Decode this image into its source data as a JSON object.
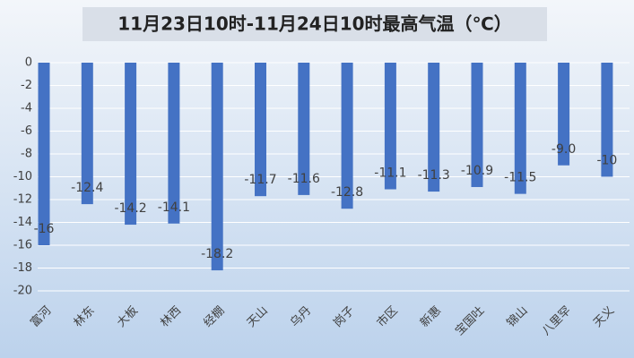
{
  "chart_data": {
    "type": "bar",
    "title": "11月23日10时-11月24日10时最高气温（℃）",
    "categories": [
      "富河",
      "林东",
      "大板",
      "林西",
      "经棚",
      "天山",
      "乌丹",
      "岗子",
      "市区",
      "新惠",
      "宝国吐",
      "锦山",
      "八里罕",
      "天义"
    ],
    "values": [
      -16,
      -12.4,
      -14.2,
      -14.1,
      -18.2,
      -11.7,
      -11.6,
      -12.8,
      -11.1,
      -11.3,
      -10.9,
      -11.5,
      -9.0,
      -10
    ],
    "value_labels": [
      "-16",
      "-12.4",
      "-14.2",
      "-14.1",
      "-18.2",
      "-11.7",
      "-11.6",
      "-12.8",
      "-11.1",
      "-11.3",
      "-10.9",
      "-11.5",
      "-9.0",
      "-10"
    ],
    "color": "#4472c4",
    "ylim": [
      -20,
      0
    ],
    "yticks": [
      0,
      -2,
      -4,
      -6,
      -8,
      -10,
      -12,
      -14,
      -16,
      -18,
      -20
    ],
    "grid": true
  }
}
